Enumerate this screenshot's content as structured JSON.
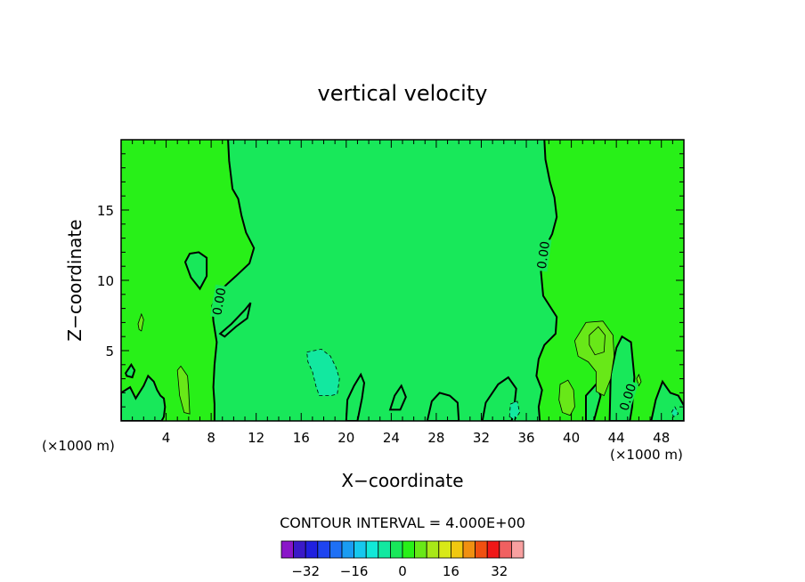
{
  "chart_data": {
    "type": "heatmap",
    "title": "vertical velocity",
    "xlabel": "X−coordinate",
    "ylabel": "Z−coordinate",
    "x_unit_label_left": "(×1000 m)",
    "x_unit_label_right": "(×1000 m)",
    "xlim": [
      0,
      50
    ],
    "ylim": [
      0,
      20
    ],
    "x_ticks": [
      4,
      8,
      12,
      16,
      20,
      24,
      28,
      32,
      36,
      40,
      44,
      48
    ],
    "y_ticks": [
      5,
      10,
      15
    ],
    "contour_interval_label": "CONTOUR INTERVAL = 4.000E+00",
    "contour_interval": 4,
    "zero_contour_label": "0.00",
    "zero_contour_labels": [
      {
        "x": 8.7,
        "y": 8.5,
        "angle": -80
      },
      {
        "x": 37.5,
        "y": 11.8,
        "angle": -82
      },
      {
        "x": 45.0,
        "y": 1.7,
        "angle": -72
      }
    ],
    "colorbar": {
      "levels": [
        -36,
        -32,
        -28,
        -24,
        -20,
        -16,
        -12,
        -8,
        -4,
        0,
        4,
        8,
        12,
        16,
        20,
        24,
        28,
        32,
        36
      ],
      "tick_labels": [
        "−32",
        "−16",
        "0",
        "16",
        "32"
      ],
      "tick_values": [
        -32,
        -16,
        0,
        16,
        32
      ],
      "colors": [
        "#8a16c8",
        "#3a1ac8",
        "#2020e0",
        "#1e44f0",
        "#1e70f5",
        "#1a9cf2",
        "#16c8ee",
        "#12e8d8",
        "#12e8a0",
        "#18e85a",
        "#28f018",
        "#68e818",
        "#a8e818",
        "#d8e818",
        "#f0c810",
        "#f09010",
        "#f05010",
        "#f01818",
        "#f06060",
        "#f8a0a0"
      ]
    },
    "background_field": {
      "description_colors": {
        "weak_positive": "#28f018",
        "near_zero_negative": "#18e85a",
        "slight_positive": "#68e818",
        "slight_negative": "#12e8a0"
      }
    },
    "zero_contour_left": [
      [
        9.5,
        20
      ],
      [
        9.6,
        18.5
      ],
      [
        9.9,
        16.5
      ],
      [
        10.4,
        15.8
      ],
      [
        10.7,
        14.6
      ],
      [
        11.1,
        13.4
      ],
      [
        11.8,
        12.3
      ],
      [
        11.4,
        11.2
      ],
      [
        10.2,
        10.3
      ],
      [
        9.5,
        9.8
      ],
      [
        8.6,
        9.1
      ],
      [
        8.1,
        8.2
      ],
      [
        8.2,
        7.1
      ],
      [
        8.5,
        5.6
      ],
      [
        8.3,
        4.0
      ],
      [
        8.2,
        2.4
      ],
      [
        8.3,
        1.2
      ],
      [
        8.3,
        0
      ]
    ],
    "zero_contour_right": [
      [
        37.6,
        20
      ],
      [
        37.7,
        18.6
      ],
      [
        38.1,
        17.0
      ],
      [
        38.5,
        15.9
      ],
      [
        38.7,
        14.5
      ],
      [
        38.3,
        13.3
      ],
      [
        37.6,
        12.2
      ],
      [
        37.3,
        10.6
      ],
      [
        37.5,
        8.9
      ],
      [
        38.7,
        7.4
      ],
      [
        38.6,
        6.2
      ],
      [
        37.6,
        5.4
      ],
      [
        37.1,
        4.4
      ],
      [
        36.9,
        3.2
      ],
      [
        37.4,
        2.2
      ],
      [
        37.1,
        1.0
      ],
      [
        37.2,
        0
      ]
    ],
    "zero_contour_closed": [
      [
        [
          6.1,
          11.9
        ],
        [
          5.7,
          11.3
        ],
        [
          6.2,
          10.2
        ],
        [
          7.0,
          9.4
        ],
        [
          7.6,
          10.3
        ],
        [
          7.6,
          11.6
        ],
        [
          6.9,
          12.0
        ]
      ],
      [
        [
          8.8,
          6.2
        ],
        [
          9.8,
          6.9
        ],
        [
          11.0,
          7.9
        ],
        [
          11.5,
          8.4
        ],
        [
          11.2,
          7.3
        ],
        [
          10.2,
          6.7
        ],
        [
          9.2,
          6.0
        ]
      ],
      [
        [
          0.4,
          3.4
        ],
        [
          0.9,
          4.0
        ],
        [
          1.2,
          3.6
        ],
        [
          1.0,
          3.1
        ],
        [
          0.5,
          3.2
        ]
      ],
      [
        [
          0,
          0
        ],
        [
          0,
          2.0
        ],
        [
          0.8,
          2.4
        ],
        [
          1.3,
          1.6
        ],
        [
          2.0,
          2.5
        ],
        [
          2.4,
          3.2
        ],
        [
          2.9,
          2.8
        ],
        [
          3.2,
          2.2
        ],
        [
          3.5,
          1.8
        ],
        [
          3.8,
          1.6
        ],
        [
          3.9,
          1.0
        ],
        [
          3.8,
          0.3
        ],
        [
          3.6,
          0
        ]
      ],
      [
        [
          20.0,
          0
        ],
        [
          20.1,
          1.5
        ],
        [
          20.7,
          2.5
        ],
        [
          21.3,
          3.3
        ],
        [
          21.6,
          2.7
        ],
        [
          21.4,
          1.6
        ],
        [
          21.0,
          0
        ]
      ],
      [
        [
          23.9,
          0.8
        ],
        [
          24.3,
          1.8
        ],
        [
          24.9,
          2.5
        ],
        [
          25.3,
          1.7
        ],
        [
          24.8,
          0.8
        ]
      ],
      [
        [
          27.2,
          0
        ],
        [
          27.6,
          1.4
        ],
        [
          28.3,
          2.0
        ],
        [
          29.2,
          1.8
        ],
        [
          29.9,
          1.3
        ],
        [
          30.0,
          0
        ]
      ],
      [
        [
          32.1,
          0
        ],
        [
          32.4,
          1.3
        ],
        [
          33.5,
          2.6
        ],
        [
          34.4,
          3.1
        ],
        [
          35.1,
          2.3
        ],
        [
          34.9,
          0.8
        ],
        [
          34.7,
          0
        ]
      ],
      [
        [
          41.3,
          0
        ],
        [
          41.3,
          1.8
        ],
        [
          42.2,
          2.6
        ],
        [
          42.6,
          1.8
        ],
        [
          42.0,
          0
        ]
      ],
      [
        [
          43.4,
          0
        ],
        [
          43.5,
          3.3
        ],
        [
          44.0,
          5.2
        ],
        [
          44.5,
          6.0
        ],
        [
          45.3,
          5.6
        ],
        [
          45.6,
          3.1
        ],
        [
          45.4,
          1.0
        ],
        [
          45.2,
          0
        ]
      ],
      [
        [
          47.1,
          0
        ],
        [
          47.5,
          1.5
        ],
        [
          48.1,
          2.8
        ],
        [
          48.8,
          2.0
        ],
        [
          49.5,
          1.8
        ],
        [
          50,
          1.1
        ],
        [
          50,
          0
        ]
      ]
    ],
    "contour_4_closed": [
      [
        [
          40.3,
          5.7
        ],
        [
          41.3,
          7.0
        ],
        [
          42.8,
          7.1
        ],
        [
          43.7,
          6.1
        ],
        [
          43.8,
          4.6
        ],
        [
          43.5,
          3.0
        ],
        [
          42.9,
          1.8
        ],
        [
          42.2,
          2.1
        ],
        [
          42.2,
          3.5
        ],
        [
          41.5,
          4.2
        ],
        [
          40.6,
          4.6
        ]
      ],
      [
        [
          41.6,
          6.1
        ],
        [
          42.4,
          6.7
        ],
        [
          43.0,
          6.1
        ],
        [
          42.9,
          4.9
        ],
        [
          42.1,
          4.7
        ],
        [
          41.6,
          5.4
        ]
      ],
      [
        [
          5.0,
          3.6
        ],
        [
          5.3,
          3.9
        ],
        [
          5.9,
          3.2
        ],
        [
          6.0,
          2.2
        ],
        [
          6.1,
          0.5
        ],
        [
          5.6,
          0.6
        ],
        [
          5.2,
          1.8
        ]
      ],
      [
        [
          39.0,
          2.6
        ],
        [
          39.7,
          2.9
        ],
        [
          40.2,
          2.2
        ],
        [
          40.3,
          1.0
        ],
        [
          39.9,
          0.4
        ],
        [
          39.2,
          0.6
        ],
        [
          38.9,
          1.5
        ]
      ],
      [
        [
          1.5,
          6.9
        ],
        [
          1.8,
          7.6
        ],
        [
          2.0,
          7.2
        ],
        [
          1.8,
          6.4
        ],
        [
          1.6,
          6.5
        ]
      ],
      [
        [
          45.8,
          3.0
        ],
        [
          46.0,
          3.3
        ],
        [
          46.2,
          2.8
        ],
        [
          46.0,
          2.5
        ]
      ]
    ],
    "contour_neg4_closed": [
      [
        [
          16.5,
          4.9
        ],
        [
          17.8,
          5.1
        ],
        [
          18.6,
          4.6
        ],
        [
          19.1,
          3.8
        ],
        [
          19.4,
          3.0
        ],
        [
          19.2,
          1.9
        ],
        [
          18.6,
          1.8
        ],
        [
          17.6,
          1.8
        ],
        [
          17.3,
          2.5
        ],
        [
          17.0,
          3.5
        ],
        [
          16.6,
          4.2
        ]
      ],
      [
        [
          34.5,
          0.3
        ],
        [
          34.6,
          1.2
        ],
        [
          35.2,
          1.4
        ],
        [
          35.4,
          0.6
        ],
        [
          35.0,
          0.1
        ]
      ],
      [
        [
          48.9,
          0.6
        ],
        [
          49.2,
          1.0
        ],
        [
          49.5,
          0.5
        ],
        [
          49.1,
          0.3
        ]
      ]
    ]
  }
}
